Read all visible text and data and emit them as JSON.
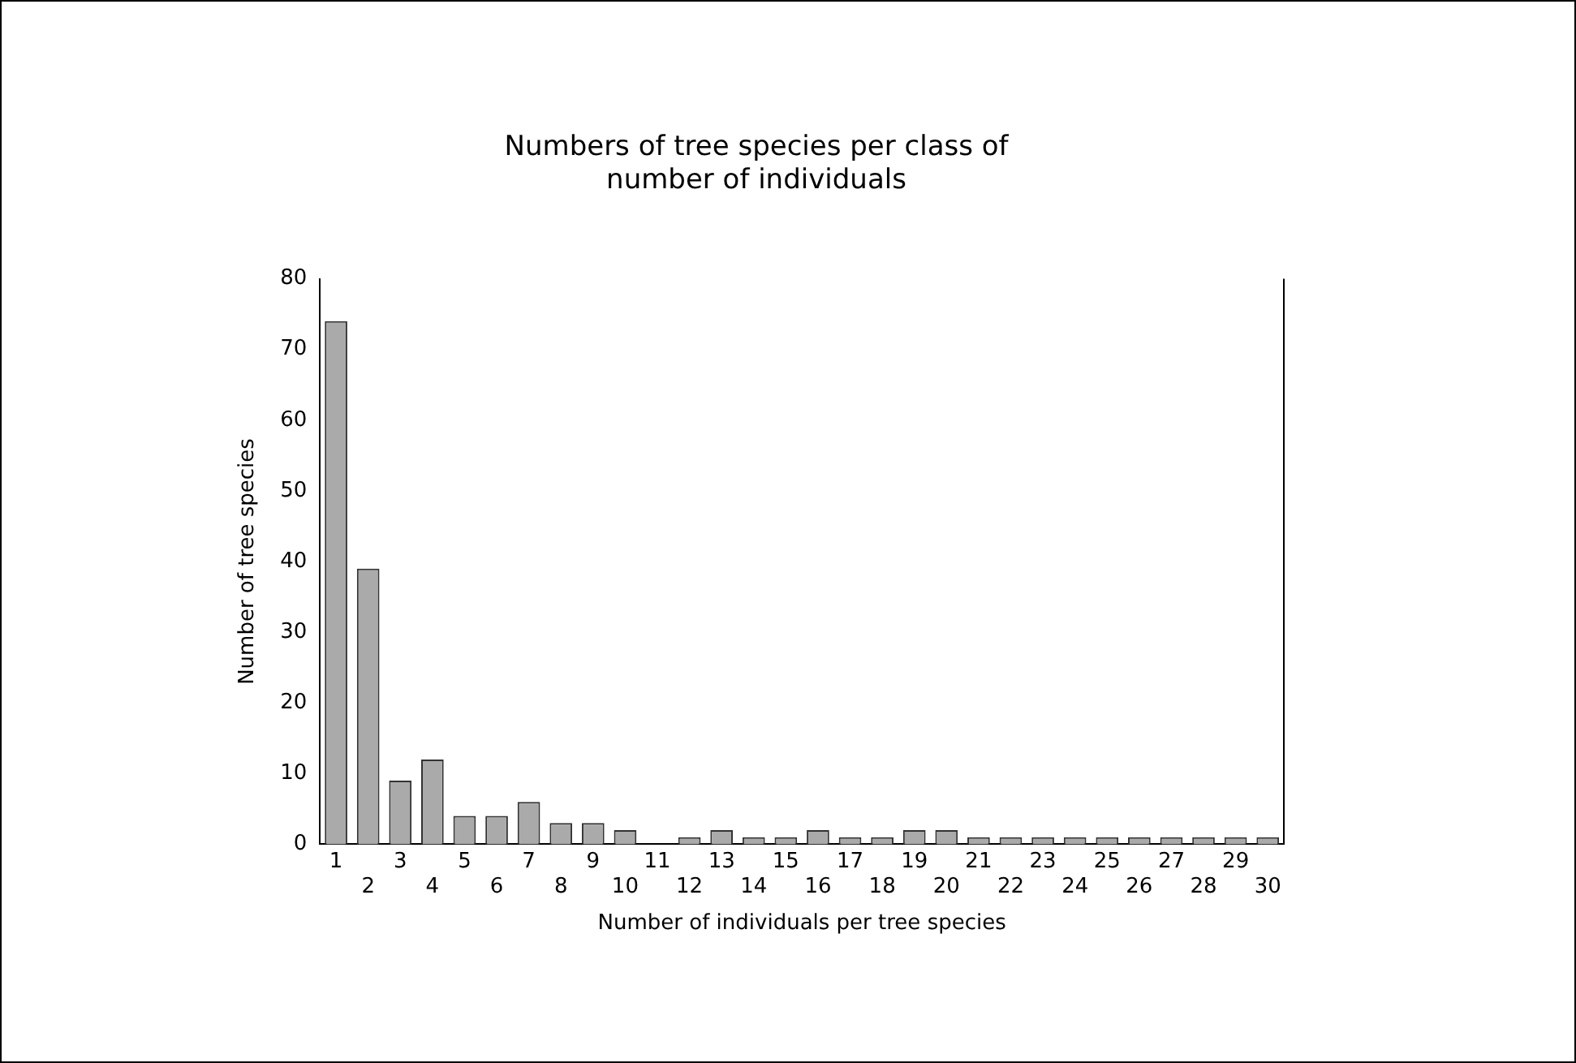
{
  "chart_data": {
    "type": "bar",
    "title": [
      "Numbers of tree species per class of",
      "number of individuals"
    ],
    "xlabel": "Number of individuals per tree species",
    "ylabel": "Number of tree species",
    "categories": [
      "1",
      "2",
      "3",
      "4",
      "5",
      "6",
      "7",
      "8",
      "9",
      "10",
      "11",
      "12",
      "13",
      "14",
      "15",
      "16",
      "17",
      "18",
      "19",
      "20",
      "21",
      "22",
      "23",
      "24",
      "25",
      "26",
      "27",
      "28",
      "29",
      "30"
    ],
    "values": [
      74,
      39,
      9,
      12,
      4,
      4,
      6,
      3,
      3,
      2,
      0,
      1,
      2,
      1,
      1,
      2,
      1,
      1,
      2,
      2,
      1,
      1,
      1,
      1,
      1,
      1,
      1,
      1,
      1,
      1
    ],
    "color": "#aaaaaa",
    "ylim": [
      0,
      80
    ],
    "yticks": [
      0,
      10,
      20,
      30,
      40,
      50,
      60,
      70,
      80
    ],
    "grid": false,
    "legend": false
  }
}
